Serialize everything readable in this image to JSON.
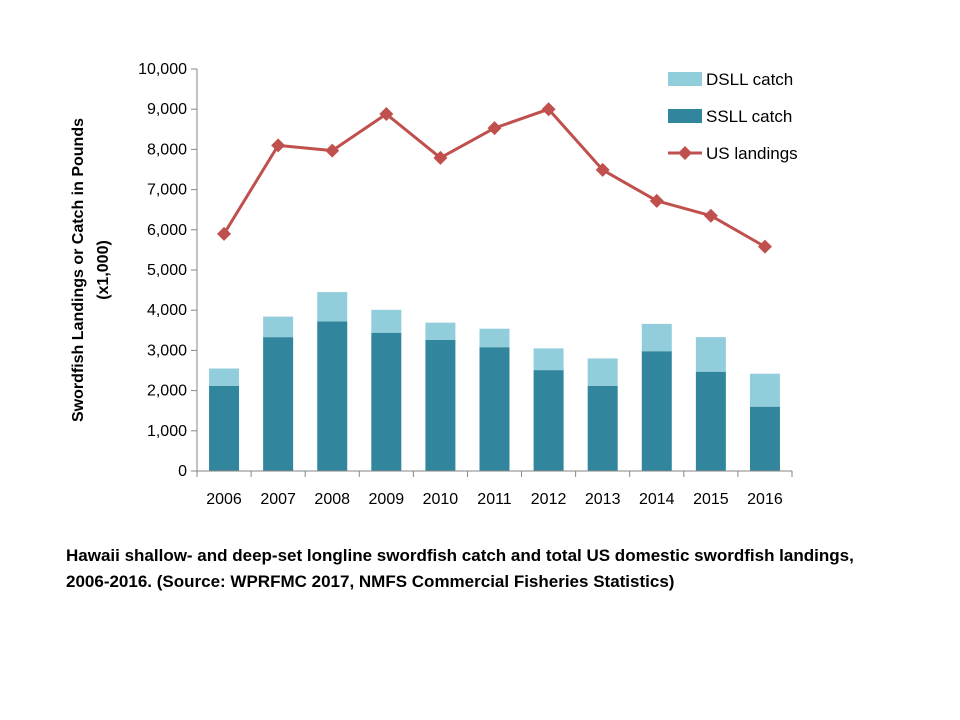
{
  "chart_data": {
    "type": "bar",
    "categories": [
      "2006",
      "2007",
      "2008",
      "2009",
      "2010",
      "2011",
      "2012",
      "2013",
      "2014",
      "2015",
      "2016"
    ],
    "series": [
      {
        "name": "SSLL catch",
        "kind": "bar-stacked",
        "color": "#31859c",
        "values": [
          2120,
          3330,
          3720,
          3440,
          3260,
          3080,
          2510,
          2120,
          2980,
          2470,
          1600
        ]
      },
      {
        "name": "DSLL catch",
        "kind": "bar-stacked",
        "color": "#92cddc",
        "values": [
          430,
          510,
          730,
          570,
          430,
          460,
          540,
          680,
          680,
          860,
          820
        ]
      },
      {
        "name": "US landings",
        "kind": "line",
        "color": "#c0504d",
        "marker": "diamond",
        "values": [
          5900,
          8100,
          7970,
          8880,
          7790,
          8530,
          9000,
          7490,
          6720,
          6350,
          5580
        ]
      }
    ],
    "ylabel_line1": "Swordfish Landings or Catch in Pounds",
    "ylabel_line2": "(x1,000)",
    "ylim": [
      0,
      10000
    ],
    "yticks": [
      "0",
      "1,000",
      "2,000",
      "3,000",
      "4,000",
      "5,000",
      "6,000",
      "7,000",
      "8,000",
      "9,000",
      "10,000"
    ],
    "legend": [
      "DSLL catch",
      "SSLL catch",
      "US landings"
    ],
    "legend_position": "top-right",
    "grid": false
  },
  "caption": "Hawaii shallow- and deep-set longline swordfish catch and total US domestic swordfish landings,  2006-2016. (Source: WPRFMC 2017, NMFS Commercial Fisheries Statistics)"
}
